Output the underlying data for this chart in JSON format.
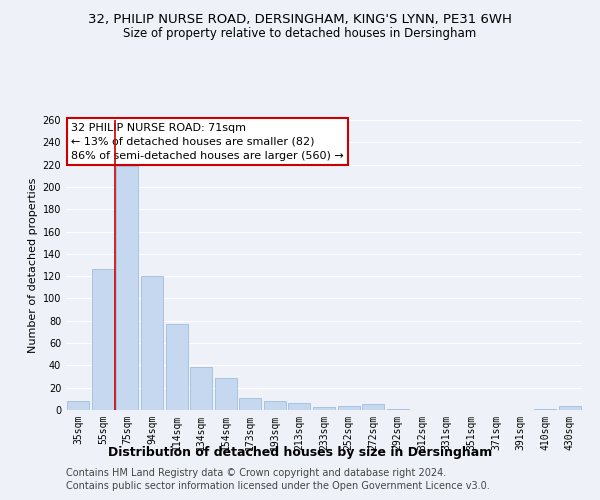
{
  "title_line1": "32, PHILIP NURSE ROAD, DERSINGHAM, KING'S LYNN, PE31 6WH",
  "title_line2": "Size of property relative to detached houses in Dersingham",
  "xlabel": "Distribution of detached houses by size in Dersingham",
  "ylabel": "Number of detached properties",
  "categories": [
    "35sqm",
    "55sqm",
    "75sqm",
    "94sqm",
    "114sqm",
    "134sqm",
    "154sqm",
    "173sqm",
    "193sqm",
    "213sqm",
    "233sqm",
    "252sqm",
    "272sqm",
    "292sqm",
    "312sqm",
    "331sqm",
    "351sqm",
    "371sqm",
    "391sqm",
    "410sqm",
    "430sqm"
  ],
  "values": [
    8,
    126,
    219,
    120,
    77,
    39,
    29,
    11,
    8,
    6,
    3,
    4,
    5,
    1,
    0,
    0,
    0,
    0,
    0,
    1,
    4
  ],
  "bar_color": "#c5d8f0",
  "bar_edge_color": "#a8c4e0",
  "vline_color": "#cc0000",
  "vline_x": 1.5,
  "ylim": [
    0,
    260
  ],
  "yticks": [
    0,
    20,
    40,
    60,
    80,
    100,
    120,
    140,
    160,
    180,
    200,
    220,
    240,
    260
  ],
  "annotation_title": "32 PHILIP NURSE ROAD: 71sqm",
  "annotation_line1": "← 13% of detached houses are smaller (82)",
  "annotation_line2": "86% of semi-detached houses are larger (560) →",
  "footer_line1": "Contains HM Land Registry data © Crown copyright and database right 2024.",
  "footer_line2": "Contains public sector information licensed under the Open Government Licence v3.0.",
  "bg_color": "#eef2f8",
  "grid_color": "#ffffff",
  "title_fontsize": 9.5,
  "subtitle_fontsize": 8.5,
  "xlabel_fontsize": 9,
  "ylabel_fontsize": 8,
  "tick_fontsize": 7,
  "annot_fontsize": 8,
  "footer_fontsize": 7
}
